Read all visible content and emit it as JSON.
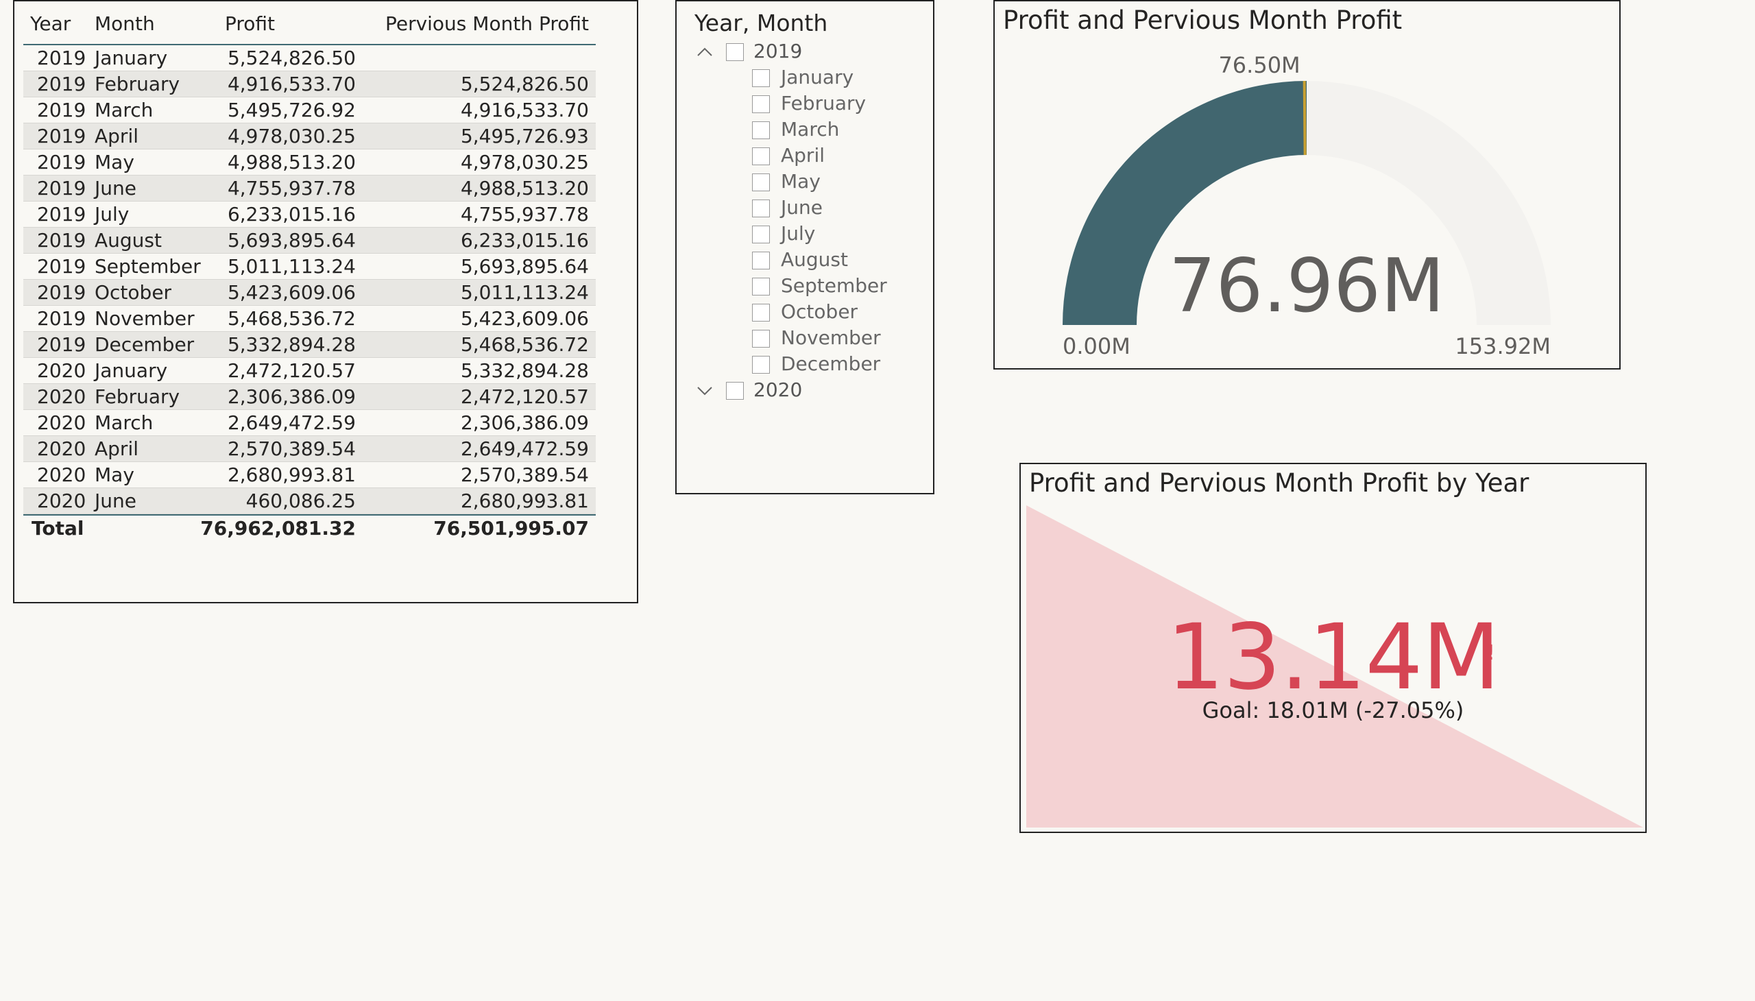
{
  "matrix": {
    "headers": {
      "year": "Year",
      "month": "Month",
      "profit": "Profit",
      "prev": "Pervious Month Profit"
    },
    "rows": [
      {
        "year": "2019",
        "month": "January",
        "profit": "5,524,826.50",
        "prev": ""
      },
      {
        "year": "2019",
        "month": "February",
        "profit": "4,916,533.70",
        "prev": "5,524,826.50"
      },
      {
        "year": "2019",
        "month": "March",
        "profit": "5,495,726.92",
        "prev": "4,916,533.70"
      },
      {
        "year": "2019",
        "month": "April",
        "profit": "4,978,030.25",
        "prev": "5,495,726.93"
      },
      {
        "year": "2019",
        "month": "May",
        "profit": "4,988,513.20",
        "prev": "4,978,030.25"
      },
      {
        "year": "2019",
        "month": "June",
        "profit": "4,755,937.78",
        "prev": "4,988,513.20"
      },
      {
        "year": "2019",
        "month": "July",
        "profit": "6,233,015.16",
        "prev": "4,755,937.78"
      },
      {
        "year": "2019",
        "month": "August",
        "profit": "5,693,895.64",
        "prev": "6,233,015.16"
      },
      {
        "year": "2019",
        "month": "September",
        "profit": "5,011,113.24",
        "prev": "5,693,895.64"
      },
      {
        "year": "2019",
        "month": "October",
        "profit": "5,423,609.06",
        "prev": "5,011,113.24"
      },
      {
        "year": "2019",
        "month": "November",
        "profit": "5,468,536.72",
        "prev": "5,423,609.06"
      },
      {
        "year": "2019",
        "month": "December",
        "profit": "5,332,894.28",
        "prev": "5,468,536.72"
      },
      {
        "year": "2020",
        "month": "January",
        "profit": "2,472,120.57",
        "prev": "5,332,894.28"
      },
      {
        "year": "2020",
        "month": "February",
        "profit": "2,306,386.09",
        "prev": "2,472,120.57"
      },
      {
        "year": "2020",
        "month": "March",
        "profit": "2,649,472.59",
        "prev": "2,306,386.09"
      },
      {
        "year": "2020",
        "month": "April",
        "profit": "2,570,389.54",
        "prev": "2,649,472.59"
      },
      {
        "year": "2020",
        "month": "May",
        "profit": "2,680,993.81",
        "prev": "2,570,389.54"
      },
      {
        "year": "2020",
        "month": "June",
        "profit": "460,086.25",
        "prev": "2,680,993.81"
      }
    ],
    "total": {
      "label": "Total",
      "profit": "76,962,081.32",
      "prev": "76,501,995.07"
    }
  },
  "slicer": {
    "title": "Year, Month",
    "years": [
      {
        "label": "2019",
        "expanded": true,
        "icon": "chevron-up-icon",
        "months": [
          "January",
          "February",
          "March",
          "April",
          "May",
          "June",
          "July",
          "August",
          "September",
          "October",
          "November",
          "December"
        ]
      },
      {
        "label": "2020",
        "expanded": false,
        "icon": "chevron-down-icon",
        "months": []
      }
    ]
  },
  "gauge": {
    "title": "Profit and Pervious Month Profit",
    "value_label": "76.96M",
    "target_label": "76.50M",
    "min_label": "0.00M",
    "max_label": "153.92M",
    "value": 76.96,
    "target": 76.5,
    "min": 0,
    "max": 153.92,
    "fill_color": "#41666f",
    "track_color": "#f3f2ef",
    "target_color": "#c8a032"
  },
  "kpi": {
    "title": "Profit and Pervious Month Profit by Year",
    "value_label": "13.14M",
    "alert": "!",
    "goal_label": "Goal: 18.01M (-27.05%)",
    "value_color": "#d64554",
    "trend_color": "#f4d2d3"
  }
}
